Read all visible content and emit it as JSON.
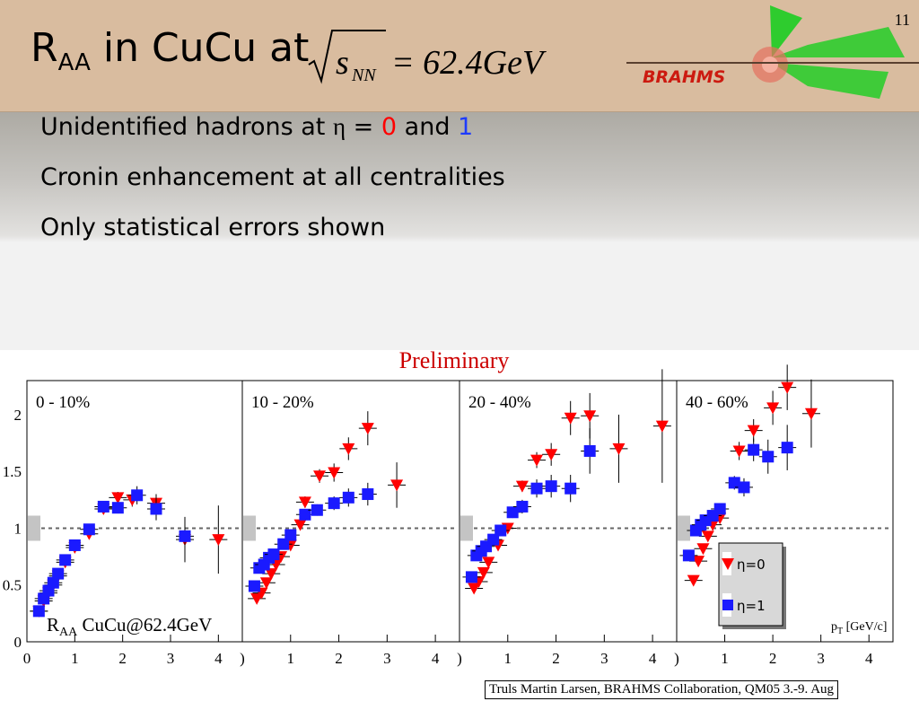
{
  "page_number": "11",
  "title": {
    "main": "R",
    "sub": "AA",
    "rest": " in CuCu at",
    "formula": "√s_NN = 62.4GeV",
    "formula_symbol": "s",
    "formula_sub": "NN",
    "formula_rhs": "= 62.4GeV"
  },
  "logo": {
    "text": "BRAHMS"
  },
  "bullets": [
    {
      "parts": [
        "Unidentified hadrons at ",
        "η",
        " = ",
        "0",
        " and ",
        "1"
      ]
    },
    {
      "text": "Cronin enhancement at all centralities"
    },
    {
      "text": "Only statistical errors shown"
    }
  ],
  "colors": {
    "eta0": "#ff0000",
    "eta1": "#1a1aff",
    "title_bar": "#d9bc9f",
    "preliminary": "#cc0000"
  },
  "footer": "Truls Martin Larsen, BRAHMS Collaboration, QM05 3.-9. Aug",
  "chart_data": {
    "type": "scatter",
    "preliminary_label": "Preliminary",
    "ylim": [
      0,
      2.3
    ],
    "xlim": [
      0,
      4.5
    ],
    "y_ticks": [
      "0",
      "0.5",
      "1",
      "1.5",
      "2"
    ],
    "x_tick_labels": [
      [
        "0",
        "1",
        "2",
        "3",
        "4"
      ],
      [
        ")",
        "1",
        "2",
        "3",
        "4"
      ],
      [
        ")",
        "1",
        "2",
        "3",
        "4"
      ],
      [
        ")",
        "1",
        "2",
        "3",
        "4"
      ]
    ],
    "reference_line": 1,
    "in_plot_label": {
      "r": "R",
      "sub": "AA",
      "text": " CuCu@62.4GeV"
    },
    "xlabel": {
      "main": "p",
      "sub": "T",
      "unit": " [GeV/c]"
    },
    "legend": [
      {
        "name": "η=0",
        "marker": "triangle-down",
        "color": "#ff0000"
      },
      {
        "name": "η=1",
        "marker": "square",
        "color": "#1a1aff"
      }
    ],
    "panels": [
      {
        "label": "0 - 10%",
        "series": [
          {
            "name": "η=0",
            "points": [
              [
                0.25,
                0.27
              ],
              [
                0.35,
                0.36
              ],
              [
                0.45,
                0.43
              ],
              [
                0.55,
                0.5
              ],
              [
                0.65,
                0.58
              ],
              [
                0.8,
                0.7
              ],
              [
                1.0,
                0.83
              ],
              [
                1.3,
                0.95
              ],
              [
                1.6,
                1.17
              ],
              [
                1.9,
                1.27
              ],
              [
                2.2,
                1.25
              ],
              [
                2.7,
                1.22
              ],
              [
                3.3,
                0.9
              ],
              [
                4.0,
                0.9
              ]
            ],
            "errors": [
              0.02,
              0.02,
              0.02,
              0.02,
              0.02,
              0.02,
              0.02,
              0.03,
              0.04,
              0.05,
              0.06,
              0.08,
              0.2,
              0.3
            ]
          },
          {
            "name": "η=1",
            "points": [
              [
                0.25,
                0.27
              ],
              [
                0.35,
                0.38
              ],
              [
                0.45,
                0.45
              ],
              [
                0.55,
                0.52
              ],
              [
                0.65,
                0.6
              ],
              [
                0.8,
                0.72
              ],
              [
                1.0,
                0.85
              ],
              [
                1.3,
                0.99
              ],
              [
                1.6,
                1.19
              ],
              [
                1.9,
                1.18
              ],
              [
                2.3,
                1.29
              ],
              [
                2.7,
                1.17
              ],
              [
                3.3,
                0.93
              ]
            ],
            "errors": [
              0.02,
              0.02,
              0.02,
              0.02,
              0.02,
              0.02,
              0.02,
              0.03,
              0.04,
              0.05,
              0.08,
              0.1,
              0.15
            ]
          }
        ]
      },
      {
        "label": "10 - 20%",
        "series": [
          {
            "name": "η=0",
            "points": [
              [
                0.3,
                0.38
              ],
              [
                0.4,
                0.43
              ],
              [
                0.5,
                0.52
              ],
              [
                0.6,
                0.6
              ],
              [
                0.7,
                0.68
              ],
              [
                0.8,
                0.75
              ],
              [
                1.0,
                0.85
              ],
              [
                1.2,
                1.03
              ],
              [
                1.3,
                1.23
              ],
              [
                1.6,
                1.46
              ],
              [
                1.9,
                1.49
              ],
              [
                2.2,
                1.7
              ],
              [
                2.6,
                1.88
              ],
              [
                3.2,
                1.38
              ]
            ],
            "errors": [
              0.02,
              0.02,
              0.02,
              0.02,
              0.02,
              0.02,
              0.03,
              0.04,
              0.05,
              0.06,
              0.08,
              0.1,
              0.15,
              0.2
            ]
          },
          {
            "name": "η=1",
            "points": [
              [
                0.25,
                0.49
              ],
              [
                0.35,
                0.65
              ],
              [
                0.45,
                0.68
              ],
              [
                0.55,
                0.74
              ],
              [
                0.65,
                0.77
              ],
              [
                0.85,
                0.86
              ],
              [
                1.0,
                0.94
              ],
              [
                1.3,
                1.12
              ],
              [
                1.55,
                1.16
              ],
              [
                1.9,
                1.22
              ],
              [
                2.2,
                1.27
              ],
              [
                2.6,
                1.3
              ]
            ],
            "errors": [
              0.02,
              0.02,
              0.02,
              0.02,
              0.02,
              0.03,
              0.03,
              0.04,
              0.05,
              0.06,
              0.08,
              0.1
            ]
          }
        ]
      },
      {
        "label": "20 - 40%",
        "series": [
          {
            "name": "η=0",
            "points": [
              [
                0.3,
                0.47
              ],
              [
                0.4,
                0.53
              ],
              [
                0.5,
                0.61
              ],
              [
                0.6,
                0.7
              ],
              [
                0.8,
                0.85
              ],
              [
                1.0,
                1.0
              ],
              [
                1.3,
                1.37
              ],
              [
                1.6,
                1.6
              ],
              [
                1.9,
                1.65
              ],
              [
                2.3,
                1.97
              ],
              [
                2.7,
                1.99
              ],
              [
                3.3,
                1.7
              ],
              [
                4.2,
                1.9
              ]
            ],
            "errors": [
              0.02,
              0.02,
              0.02,
              0.03,
              0.03,
              0.04,
              0.05,
              0.07,
              0.1,
              0.15,
              0.2,
              0.3,
              0.5
            ]
          },
          {
            "name": "η=1",
            "points": [
              [
                0.25,
                0.57
              ],
              [
                0.35,
                0.76
              ],
              [
                0.45,
                0.8
              ],
              [
                0.55,
                0.84
              ],
              [
                0.7,
                0.9
              ],
              [
                0.85,
                0.98
              ],
              [
                1.1,
                1.14
              ],
              [
                1.3,
                1.19
              ],
              [
                1.6,
                1.35
              ],
              [
                1.9,
                1.37
              ],
              [
                2.3,
                1.35
              ],
              [
                2.7,
                1.68
              ]
            ],
            "errors": [
              0.02,
              0.02,
              0.03,
              0.03,
              0.03,
              0.04,
              0.05,
              0.06,
              0.08,
              0.1,
              0.12,
              0.2
            ]
          }
        ]
      },
      {
        "label": "40 - 60%",
        "series": [
          {
            "name": "η=0",
            "points": [
              [
                0.35,
                0.54
              ],
              [
                0.45,
                0.71
              ],
              [
                0.55,
                0.82
              ],
              [
                0.65,
                0.93
              ],
              [
                0.75,
                1.03
              ],
              [
                0.9,
                1.09
              ],
              [
                1.3,
                1.68
              ],
              [
                1.6,
                1.86
              ],
              [
                2.0,
                2.06
              ],
              [
                2.3,
                2.24
              ],
              [
                2.8,
                2.01
              ]
            ],
            "errors": [
              0.03,
              0.03,
              0.03,
              0.04,
              0.05,
              0.05,
              0.08,
              0.1,
              0.15,
              0.2,
              0.3
            ]
          },
          {
            "name": "η=1",
            "points": [
              [
                0.25,
                0.76
              ],
              [
                0.4,
                0.98
              ],
              [
                0.5,
                1.03
              ],
              [
                0.6,
                1.07
              ],
              [
                0.75,
                1.11
              ],
              [
                0.9,
                1.17
              ],
              [
                1.2,
                1.4
              ],
              [
                1.4,
                1.36
              ],
              [
                1.6,
                1.69
              ],
              [
                1.9,
                1.63
              ],
              [
                2.3,
                1.71
              ]
            ],
            "errors": [
              0.02,
              0.03,
              0.03,
              0.04,
              0.04,
              0.05,
              0.06,
              0.08,
              0.1,
              0.15,
              0.2
            ]
          }
        ]
      }
    ]
  }
}
